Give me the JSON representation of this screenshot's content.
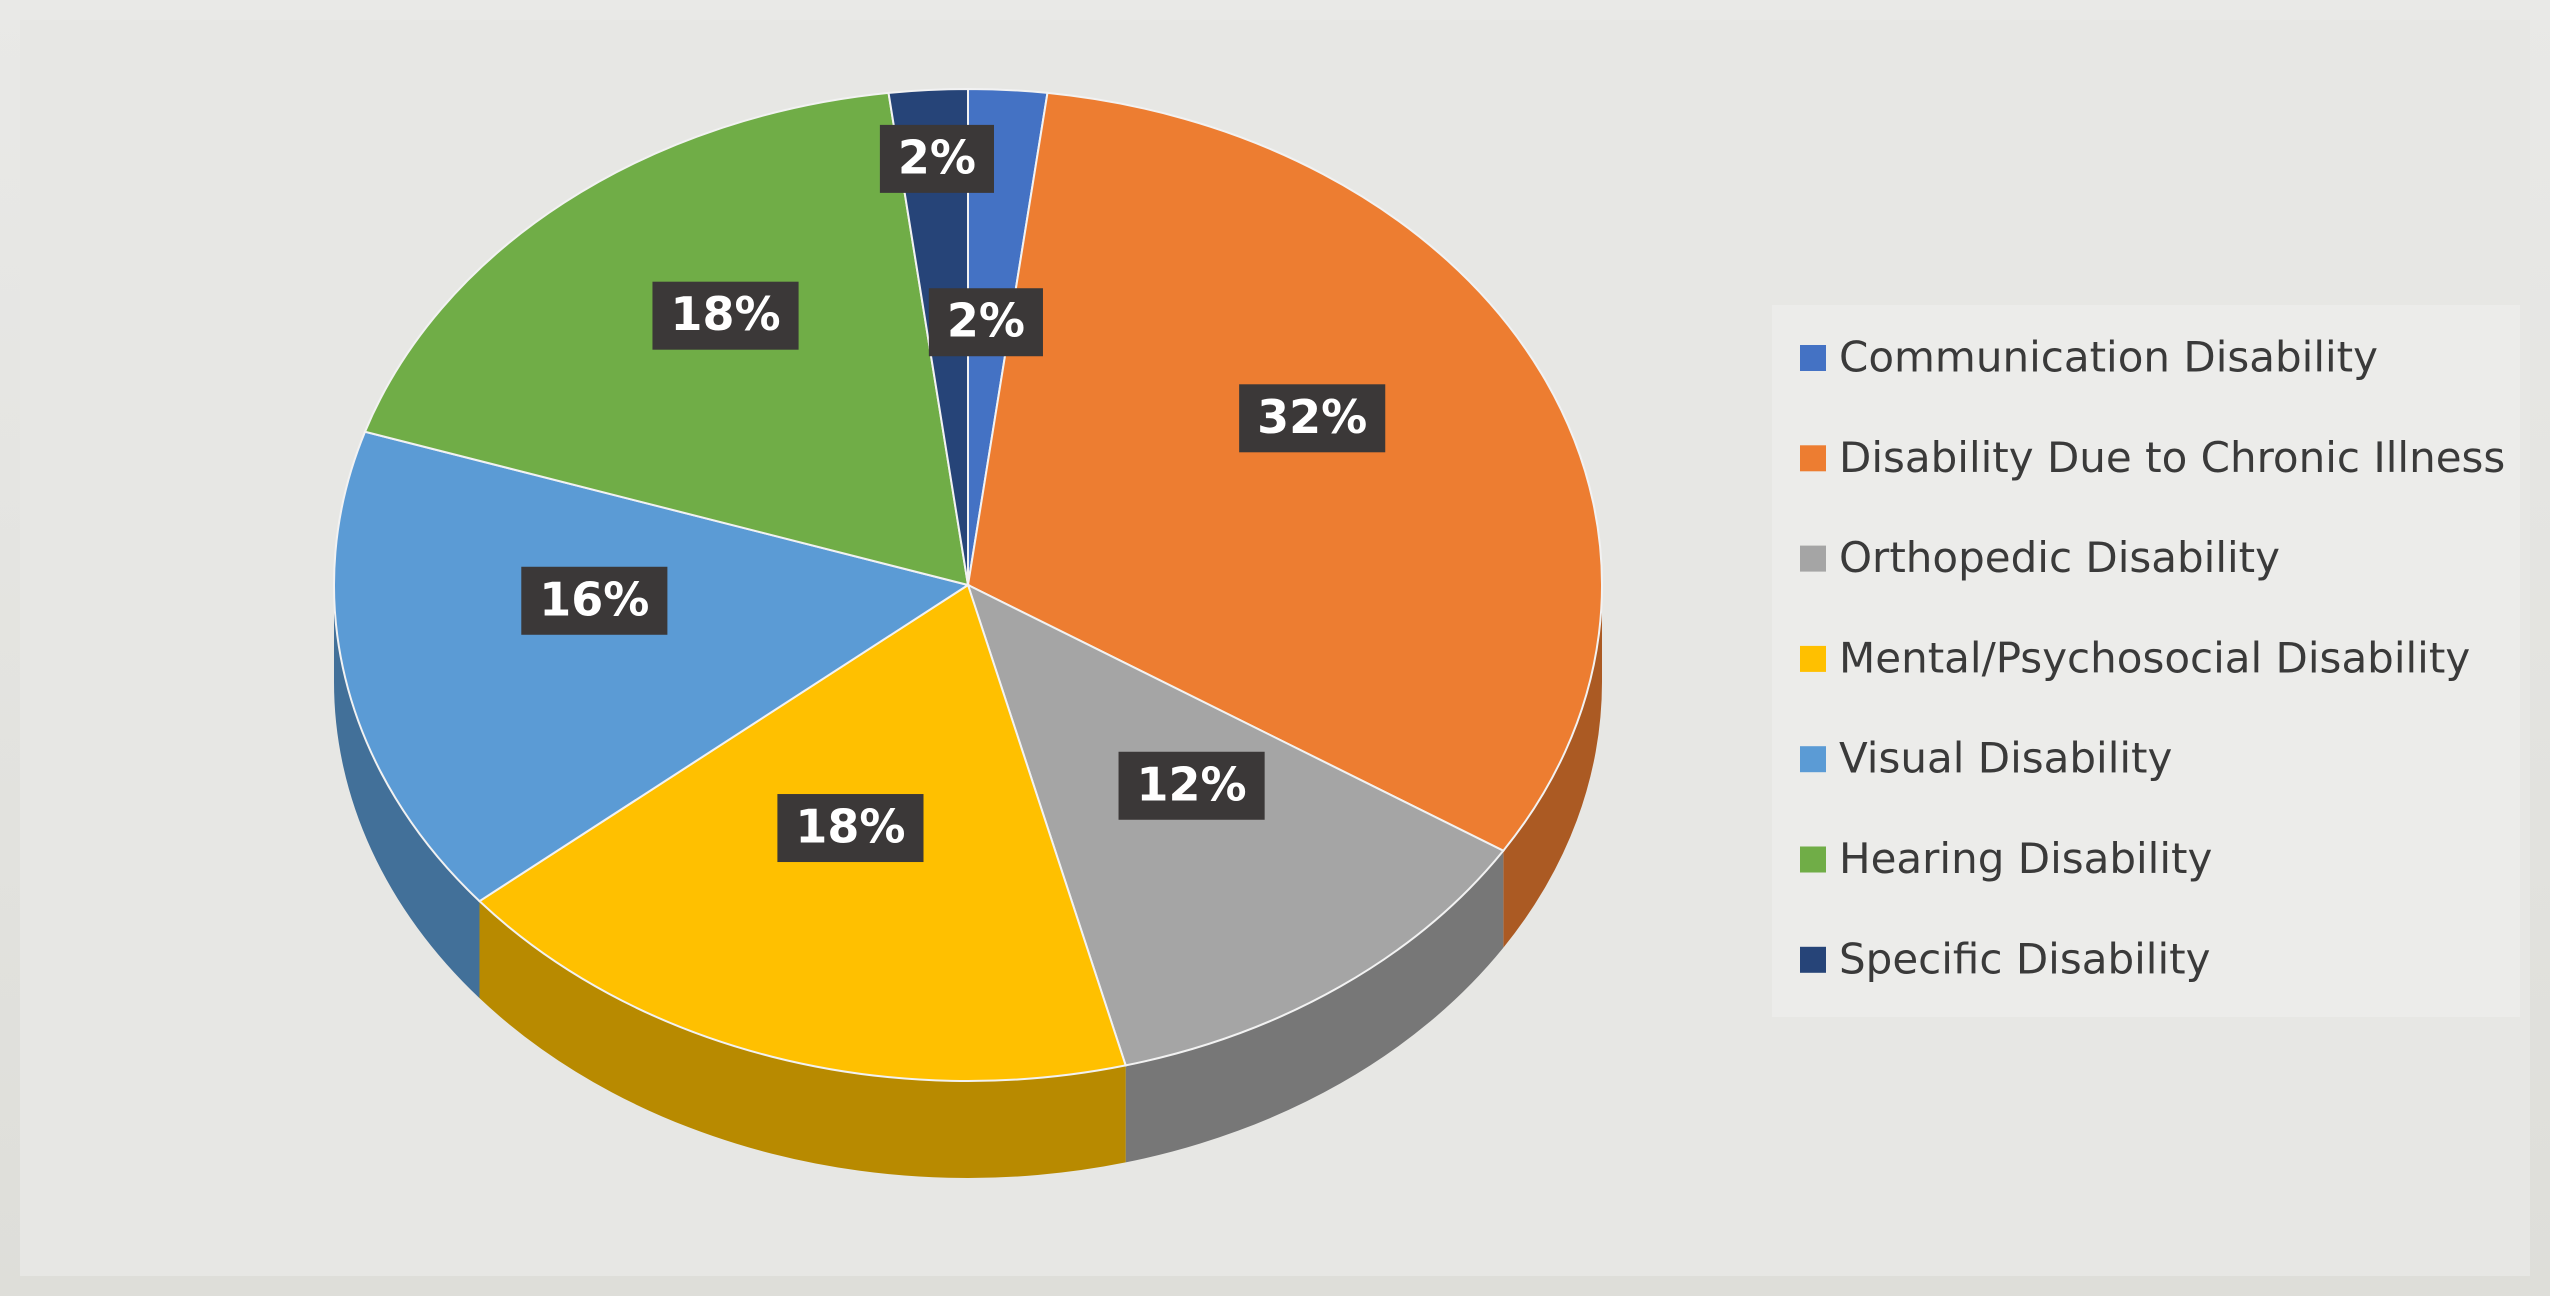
{
  "chart_data": {
    "type": "pie",
    "categories": [
      "Communication Disability",
      "Disability Due to Chronic Illness",
      "Orthopedic Disability",
      "Mental/Psychosocial Disability",
      "Visual Disability",
      "Hearing Disability",
      "Specific Disability"
    ],
    "values": [
      2,
      32,
      12,
      18,
      16,
      18,
      2
    ],
    "value_labels": [
      "2%",
      "32%",
      "12%",
      "18%",
      "16%",
      "18%",
      "2%"
    ],
    "colors": [
      "#4472c4",
      "#ed7d31",
      "#a5a5a5",
      "#ffc000",
      "#5b9bd5",
      "#70ad47",
      "#264478"
    ],
    "legend": "right"
  }
}
